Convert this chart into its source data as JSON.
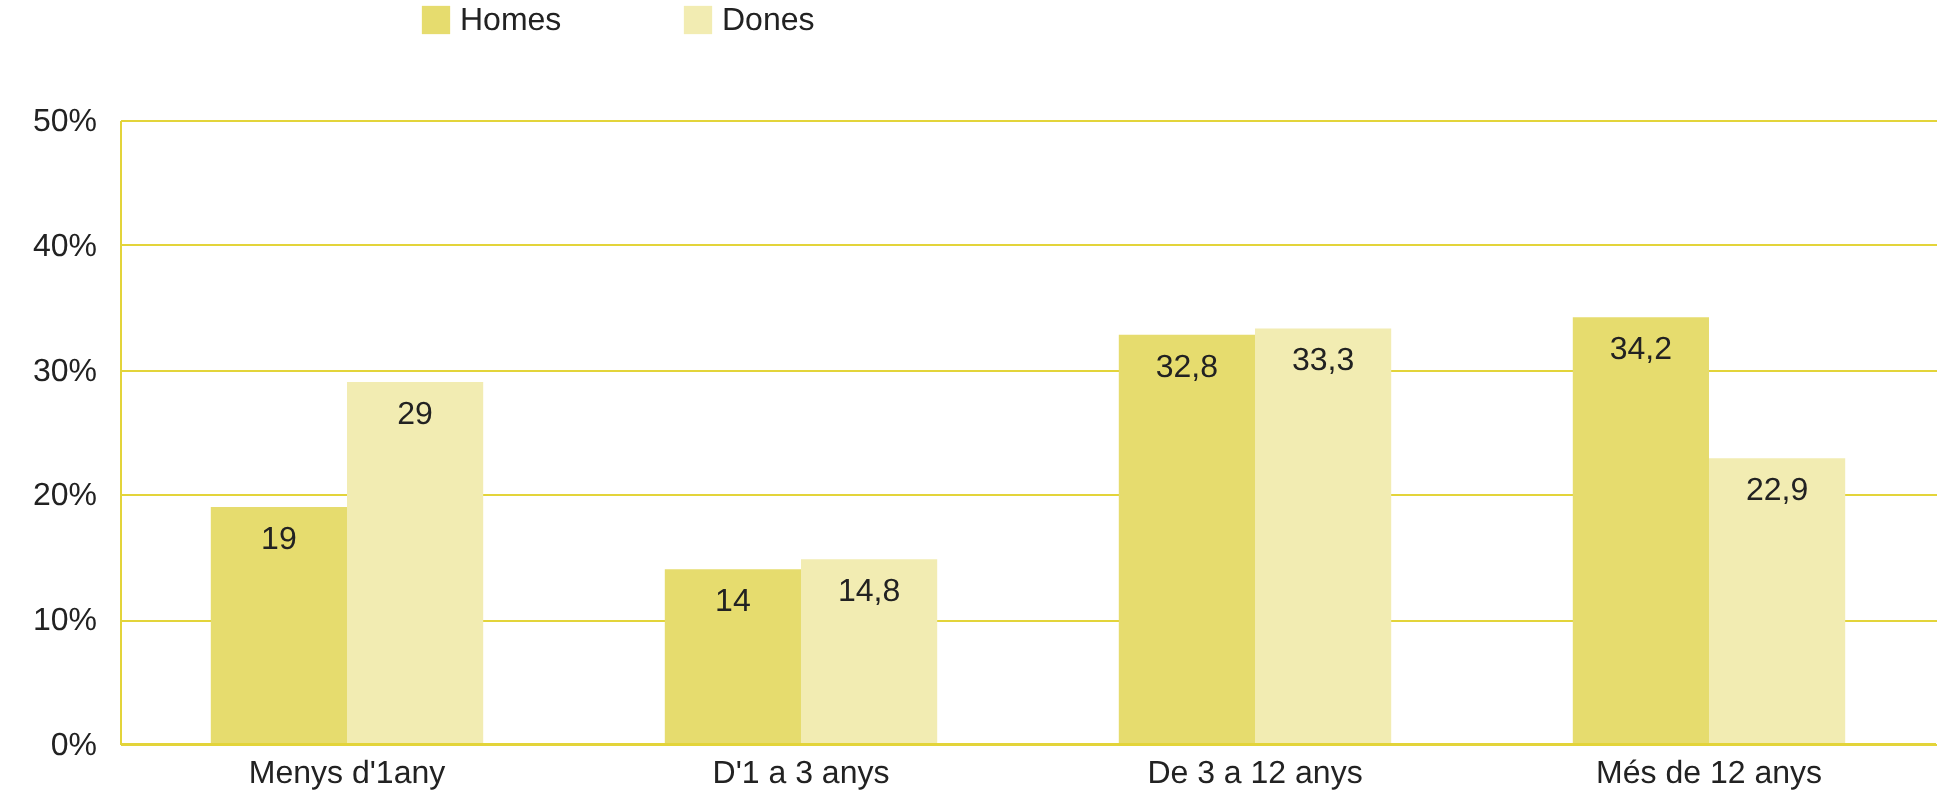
{
  "chart_data": {
    "type": "bar",
    "categories": [
      "Menys d'1any",
      "D'1 a 3 anys",
      "De 3 a 12 anys",
      "Més de 12 anys"
    ],
    "series": [
      {
        "name": "Homes",
        "color": "#e6dc6e",
        "values": [
          19,
          14,
          32.8,
          34.2
        ],
        "value_labels": [
          "19",
          "14",
          "32,8",
          "34,2"
        ]
      },
      {
        "name": "Dones",
        "color": "#f2ecb2",
        "values": [
          29,
          14.8,
          33.3,
          22.9
        ],
        "value_labels": [
          "29",
          "14,8",
          "33,3",
          "22,9"
        ]
      }
    ],
    "ylim": [
      0,
      50
    ],
    "yticks": [
      {
        "value": 0,
        "label": "0%"
      },
      {
        "value": 10,
        "label": "10%"
      },
      {
        "value": 20,
        "label": "20%"
      },
      {
        "value": 30,
        "label": "30%"
      },
      {
        "value": 40,
        "label": "40%"
      },
      {
        "value": 50,
        "label": "50%"
      }
    ],
    "grid": "y",
    "legend": "top"
  }
}
